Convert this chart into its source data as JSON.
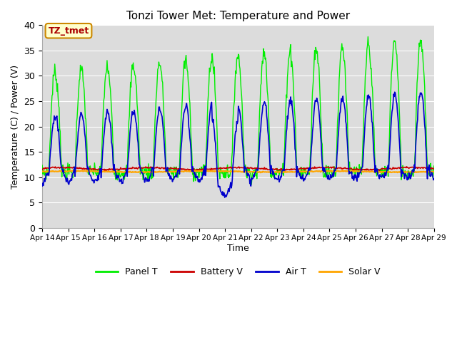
{
  "title": "Tonzi Tower Met: Temperature and Power",
  "xlabel": "Time",
  "ylabel": "Temperature (C) / Power (V)",
  "ylim": [
    0,
    40
  ],
  "ytick_values": [
    0,
    5,
    10,
    15,
    20,
    25,
    30,
    35,
    40
  ],
  "ytick_labels": [
    "0",
    "5",
    "10",
    "15",
    "20",
    "25",
    "30",
    "35",
    "40"
  ],
  "xtick_labels": [
    "Apr 14",
    "Apr 15",
    "Apr 16",
    "Apr 17",
    "Apr 18",
    "Apr 19",
    "Apr 20",
    "Apr 21",
    "Apr 22",
    "Apr 23",
    "Apr 24",
    "Apr 25",
    "Apr 26",
    "Apr 27",
    "Apr 28",
    "Apr 29"
  ],
  "panel_t_color": "#00EE00",
  "battery_v_color": "#CC0000",
  "air_t_color": "#0000CC",
  "solar_v_color": "#FFA500",
  "bg_color": "#DCDCDC",
  "fig_bg_color": "#FFFFFF",
  "grid_color": "#FFFFFF",
  "annotation_text": "TZ_tmet",
  "annotation_bg": "#FFFFCC",
  "annotation_border": "#CC8800",
  "annotation_text_color": "#AA0000",
  "legend_entries": [
    "Panel T",
    "Battery V",
    "Air T",
    "Solar V"
  ]
}
